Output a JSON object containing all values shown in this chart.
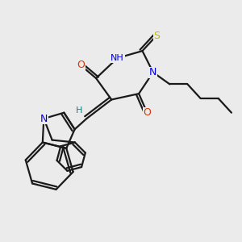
{
  "bg_color": "#ebebeb",
  "line_color": "#1a1a1a",
  "bond_width": 1.6,
  "atom_colors": {
    "N": "#0000dd",
    "O": "#dd3300",
    "S": "#bbbb00",
    "H": "#008888"
  }
}
